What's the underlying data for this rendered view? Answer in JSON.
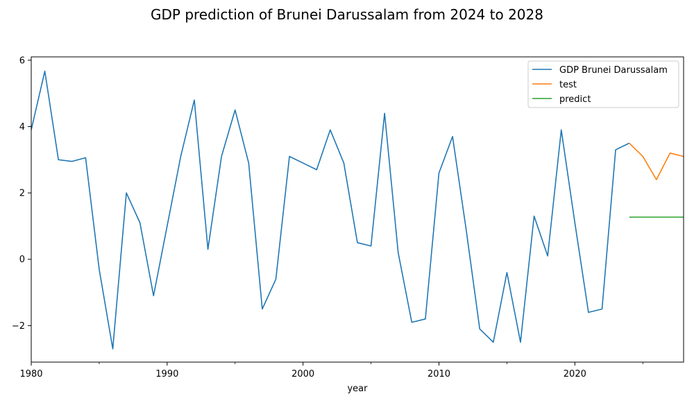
{
  "chart_data": {
    "type": "line",
    "title": "GDP prediction of Brunei Darussalam from 2024 to 2028",
    "xlabel": "year",
    "ylabel": "",
    "xlim": [
      1980,
      2028
    ],
    "ylim": [
      -3.1,
      6.1
    ],
    "x_ticks": [
      1980,
      1990,
      2000,
      2010,
      2020
    ],
    "x_tick_labels": [
      "1980",
      "1990",
      "2000",
      "2010",
      "2020"
    ],
    "y_ticks": [
      -2,
      0,
      2,
      4,
      6
    ],
    "y_tick_labels": [
      "−2",
      "0",
      "2",
      "4",
      "6"
    ],
    "grid": false,
    "legend": "top-right",
    "series": [
      {
        "name": "GDP Brunei Darussalam",
        "color": "#1f77b4",
        "x": [
          1980,
          1981,
          1982,
          1983,
          1984,
          1985,
          1986,
          1987,
          1988,
          1989,
          1990,
          1991,
          1992,
          1993,
          1994,
          1995,
          1996,
          1997,
          1998,
          1999,
          2000,
          2001,
          2002,
          2003,
          2004,
          2005,
          2006,
          2007,
          2008,
          2009,
          2010,
          2011,
          2012,
          2013,
          2014,
          2015,
          2016,
          2017,
          2018,
          2019,
          2020,
          2021,
          2022,
          2023,
          2024
        ],
        "values": [
          3.9,
          5.67,
          3.0,
          2.95,
          3.06,
          -0.3,
          -2.7,
          2.0,
          1.1,
          -1.1,
          1.0,
          3.1,
          4.8,
          0.3,
          3.1,
          4.5,
          2.9,
          -1.5,
          -0.6,
          3.1,
          2.9,
          2.7,
          3.9,
          2.9,
          0.5,
          0.4,
          4.4,
          0.2,
          -1.9,
          -1.8,
          2.6,
          3.7,
          0.9,
          -2.1,
          -2.5,
          -0.4,
          -2.5,
          1.3,
          0.1,
          3.9,
          1.1,
          -1.6,
          -1.5,
          3.3,
          3.5
        ]
      },
      {
        "name": "test",
        "color": "#ff7f0e",
        "x": [
          2024,
          2025,
          2026,
          2027,
          2028
        ],
        "values": [
          3.5,
          3.1,
          2.4,
          3.2,
          3.1
        ]
      },
      {
        "name": "predict",
        "color": "#2ca02c",
        "x": [
          2024,
          2025,
          2026,
          2027,
          2028
        ],
        "values": [
          1.27,
          1.27,
          1.27,
          1.27,
          1.27
        ]
      }
    ]
  }
}
